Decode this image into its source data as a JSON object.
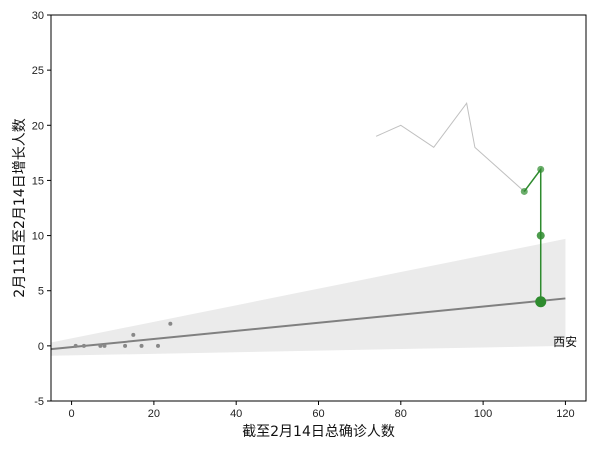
{
  "chart_data": {
    "type": "scatter",
    "xlabel": "截至2月14日总确诊人数",
    "ylabel": "2月11日至2月14日增长人数",
    "xlim": [
      -5,
      125
    ],
    "ylim": [
      -5,
      30
    ],
    "xticks": [
      0,
      20,
      40,
      60,
      80,
      100,
      120
    ],
    "yticks": [
      -5,
      0,
      5,
      10,
      15,
      20,
      25,
      30
    ],
    "grid": false,
    "scatter_points": [
      {
        "x": 1,
        "y": 0
      },
      {
        "x": 3,
        "y": 0
      },
      {
        "x": 7,
        "y": 0
      },
      {
        "x": 8,
        "y": 0
      },
      {
        "x": 13,
        "y": 0
      },
      {
        "x": 15,
        "y": 1
      },
      {
        "x": 17,
        "y": 0
      },
      {
        "x": 21,
        "y": 0
      },
      {
        "x": 24,
        "y": 2
      }
    ],
    "regression_line": {
      "x": [
        -5,
        120
      ],
      "y": [
        -0.3,
        4.3
      ],
      "color": "#808080"
    },
    "confidence_band": {
      "x": [
        -5,
        120
      ],
      "upper": [
        0.3,
        9.7
      ],
      "lower": [
        -0.9,
        0.0
      ],
      "color": "#ebebeb"
    },
    "gray_trajectory": {
      "x": [
        74,
        80,
        88,
        96,
        98,
        110,
        114
      ],
      "y": [
        19,
        20,
        18,
        22,
        18,
        14,
        16
      ],
      "color": "#c0c0c0"
    },
    "green_trajectory": {
      "points": [
        {
          "x": 110,
          "y": 14,
          "size": "small"
        },
        {
          "x": 114,
          "y": 16,
          "size": "small"
        },
        {
          "x": 114,
          "y": 10,
          "size": "medium"
        },
        {
          "x": 114,
          "y": 4,
          "size": "large"
        }
      ],
      "color": "#2e8b2e"
    },
    "annotations": [
      {
        "text": "西安",
        "x": 117,
        "y": 0
      }
    ]
  }
}
